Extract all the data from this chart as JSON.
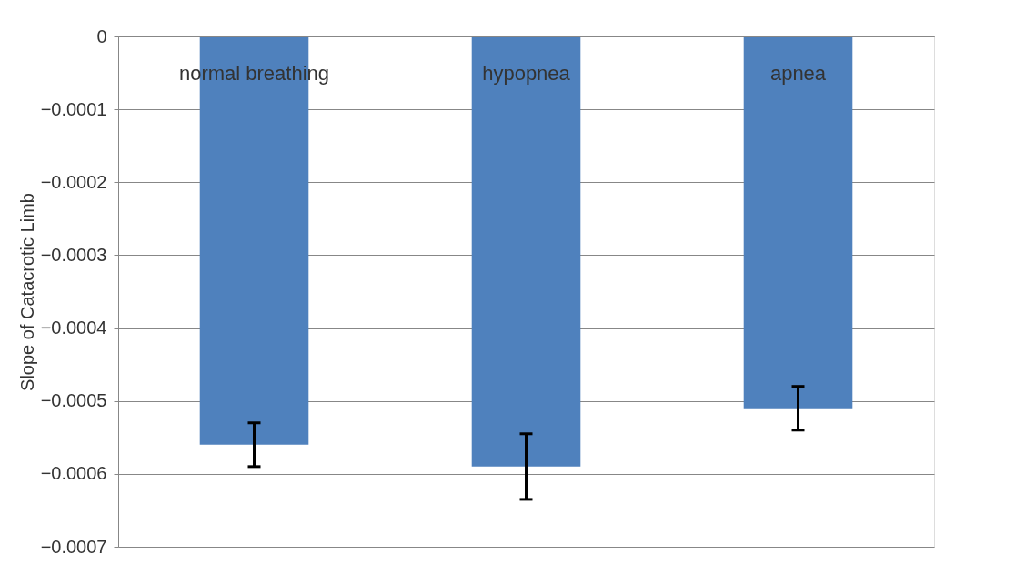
{
  "chart_data": {
    "type": "bar",
    "ylabel": "Slope of Catacrotic Limb",
    "categories": [
      "normal breathing",
      "hypopnea",
      "apnea"
    ],
    "values": [
      -0.00056,
      -0.00059,
      -0.00051
    ],
    "errors": [
      3e-05,
      4.5e-05,
      3e-05
    ],
    "color": "#4f81bd",
    "ylim": [
      -0.0007,
      0
    ],
    "yticks": [
      -0.0007,
      -0.0006,
      -0.0005,
      -0.0004,
      -0.0003,
      -0.0002,
      -0.0001,
      0
    ],
    "grid": "y"
  }
}
